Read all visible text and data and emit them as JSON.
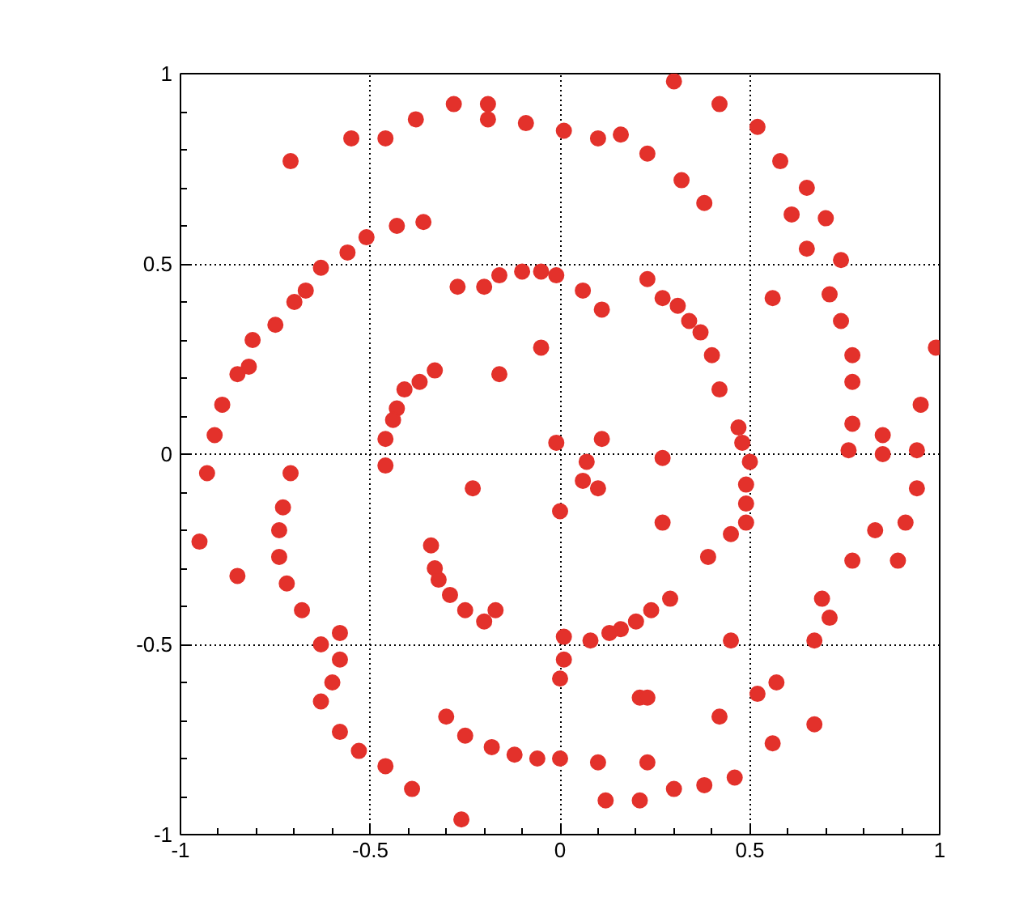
{
  "chart_data": {
    "type": "scatter",
    "marker": "circle",
    "grid": true,
    "xlim": [
      -1,
      1
    ],
    "ylim": [
      -1,
      1
    ],
    "xticks": [
      -1,
      -0.5,
      0,
      0.5,
      1
    ],
    "yticks": [
      -1,
      -0.5,
      0,
      0.5,
      1
    ],
    "series": [
      {
        "color": "#e3312b",
        "x": [
          -0.71,
          -0.55,
          -0.46,
          -0.38,
          -0.28,
          -0.19,
          -0.19,
          -0.09,
          0.01,
          -0.43,
          -0.36,
          -0.51,
          -0.56,
          -0.63,
          -0.67,
          -0.7,
          -0.75,
          -0.81,
          -0.82,
          -0.85,
          -0.89,
          -0.91,
          -0.27,
          -0.2,
          -0.16,
          -0.1,
          -0.05,
          -0.01,
          -0.05,
          -0.16,
          -0.33,
          -0.37,
          -0.41,
          -0.43,
          -0.44,
          -0.46,
          -0.46,
          -0.01,
          0.3,
          0.42,
          0.1,
          0.16,
          0.23,
          0.32,
          0.38,
          0.52,
          0.58,
          0.65,
          0.61,
          0.7,
          0.65,
          0.74,
          0.06,
          0.11,
          0.23,
          0.27,
          0.31,
          0.34,
          0.37,
          0.4,
          0.42,
          0.47,
          0.48,
          0.56,
          0.71,
          0.74,
          0.77,
          0.77,
          0.77,
          0.76,
          0.85,
          0.85,
          0.94,
          0.95,
          0.99,
          0.11,
          0.07,
          0.27,
          0.5,
          -0.93,
          -0.71,
          -0.73,
          -0.74,
          -0.74,
          -0.72,
          -0.95,
          -0.85,
          -0.68,
          -0.63,
          -0.58,
          -0.58,
          -0.6,
          -0.63,
          -0.58,
          -0.53,
          -0.46,
          -0.39,
          -0.26,
          -0.23,
          -0.34,
          -0.33,
          -0.32,
          -0.29,
          -0.25,
          -0.2,
          -0.17,
          -0.3,
          -0.25,
          -0.18,
          -0.12,
          -0.06,
          0.0,
          0.0,
          0.01,
          0.01,
          0.0,
          0.06,
          0.1,
          0.27,
          0.49,
          0.49,
          0.49,
          0.45,
          0.39,
          0.29,
          0.24,
          0.2,
          0.16,
          0.13,
          0.08,
          0.45,
          0.21,
          0.23,
          0.42,
          0.52,
          0.57,
          0.56,
          0.67,
          0.1,
          0.23,
          0.12,
          0.21,
          0.3,
          0.38,
          0.46,
          0.94,
          0.91,
          0.83,
          0.77,
          0.89,
          0.69,
          0.71,
          0.67
        ],
        "values": [
          0.77,
          0.83,
          0.83,
          0.88,
          0.92,
          0.92,
          0.88,
          0.87,
          0.85,
          0.6,
          0.61,
          0.57,
          0.53,
          0.49,
          0.43,
          0.4,
          0.34,
          0.3,
          0.23,
          0.21,
          0.13,
          0.05,
          0.44,
          0.44,
          0.47,
          0.48,
          0.48,
          0.47,
          0.28,
          0.21,
          0.22,
          0.19,
          0.17,
          0.12,
          0.09,
          0.04,
          -0.03,
          0.03,
          0.98,
          0.92,
          0.83,
          0.84,
          0.79,
          0.72,
          0.66,
          0.86,
          0.77,
          0.7,
          0.63,
          0.62,
          0.54,
          0.51,
          0.43,
          0.38,
          0.46,
          0.41,
          0.39,
          0.35,
          0.32,
          0.26,
          0.17,
          0.07,
          0.03,
          0.41,
          0.42,
          0.35,
          0.26,
          0.19,
          0.08,
          0.01,
          0.05,
          0.0,
          0.01,
          0.13,
          0.28,
          0.04,
          -0.02,
          -0.01,
          -0.02,
          -0.05,
          -0.05,
          -0.14,
          -0.2,
          -0.27,
          -0.34,
          -0.23,
          -0.32,
          -0.41,
          -0.5,
          -0.47,
          -0.54,
          -0.6,
          -0.65,
          -0.73,
          -0.78,
          -0.82,
          -0.88,
          -0.96,
          -0.09,
          -0.24,
          -0.3,
          -0.33,
          -0.37,
          -0.41,
          -0.44,
          -0.41,
          -0.69,
          -0.74,
          -0.77,
          -0.79,
          -0.8,
          -0.8,
          -0.15,
          -0.48,
          -0.54,
          -0.59,
          -0.07,
          -0.09,
          -0.18,
          -0.08,
          -0.13,
          -0.18,
          -0.21,
          -0.27,
          -0.38,
          -0.41,
          -0.44,
          -0.46,
          -0.47,
          -0.49,
          -0.49,
          -0.64,
          -0.64,
          -0.69,
          -0.63,
          -0.6,
          -0.76,
          -0.71,
          -0.81,
          -0.81,
          -0.91,
          -0.91,
          -0.88,
          -0.87,
          -0.85,
          -0.09,
          -0.18,
          -0.2,
          -0.28,
          -0.28,
          -0.38,
          -0.43,
          -0.49
        ]
      }
    ]
  }
}
